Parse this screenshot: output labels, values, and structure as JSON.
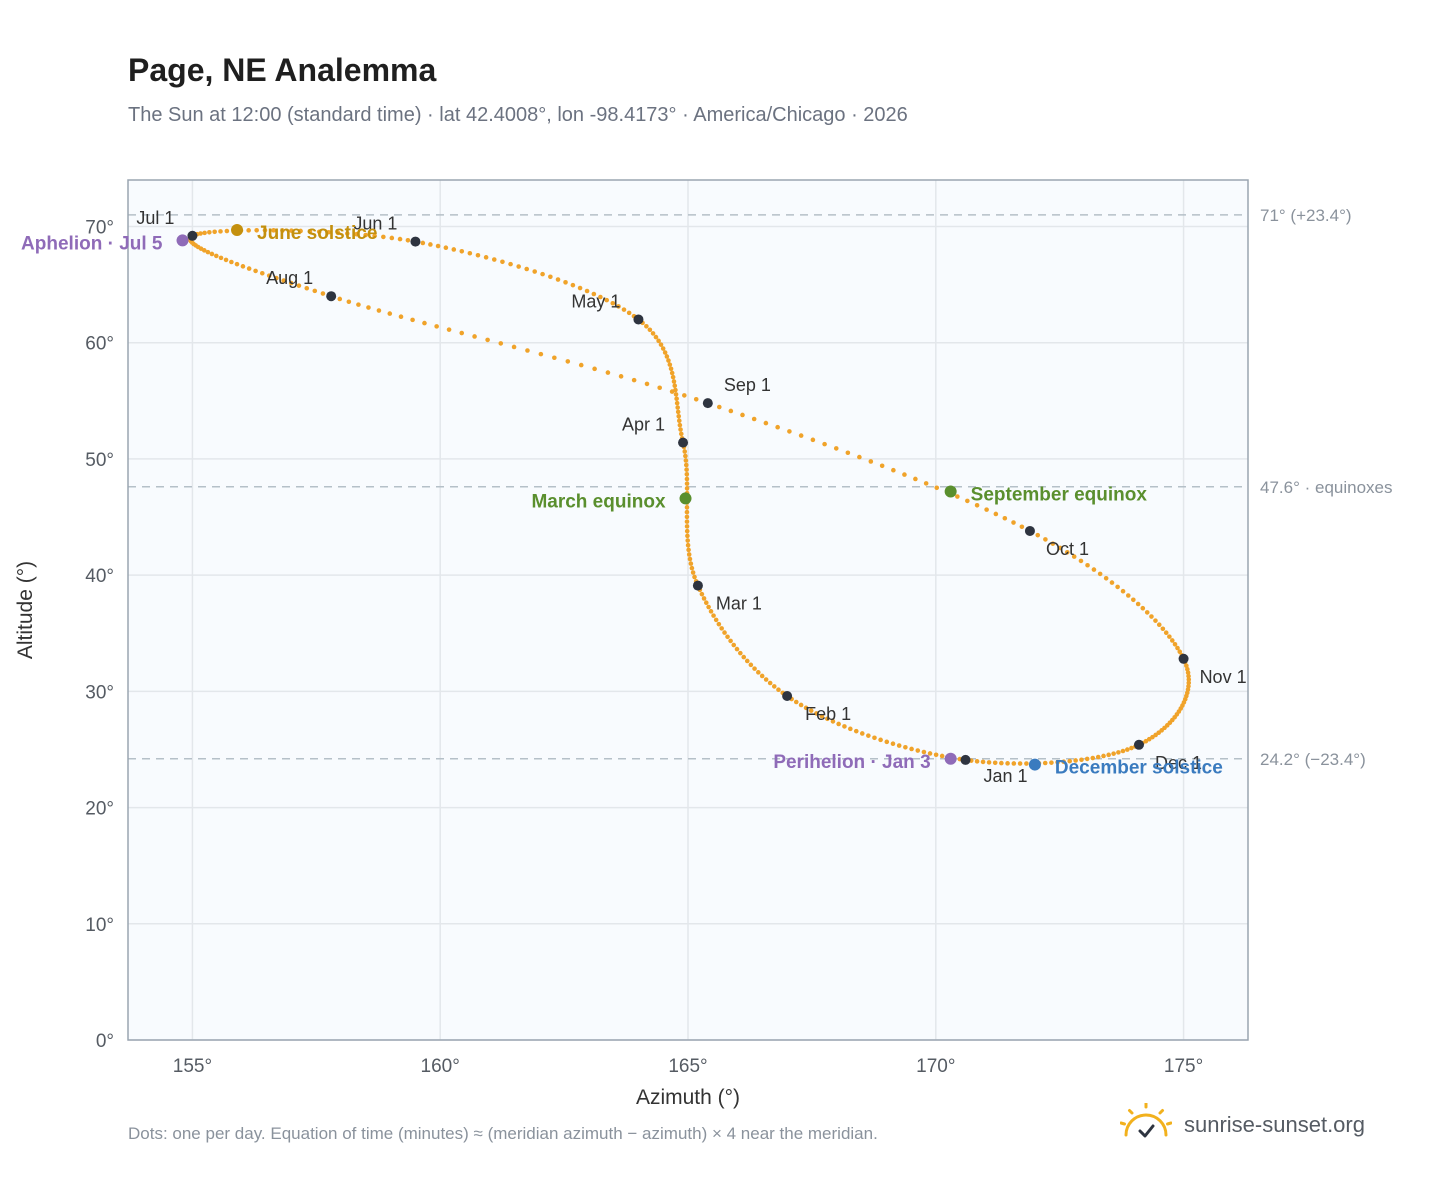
{
  "header": {
    "title": "Page, NE Analemma",
    "subtitle": "The Sun at 12:00 (standard time) · lat 42.4008°, lon -98.4173° · America/Chicago · 2026"
  },
  "footer": {
    "note": "Dots: one per day. Equation of time (minutes) ≈ (meridian azimuth − azimuth) × 4 near the meridian.",
    "brand": "sunrise-sunset.org"
  },
  "colors": {
    "curve": "#f0a32a",
    "month_dot": "#2e3440",
    "equinox": "#5a8f2e",
    "june_solstice": "#c4900e",
    "december_solstice": "#3a7bbf",
    "apsis": "#8f6bb8",
    "plot_bg": "#f8fbfe",
    "grid": "#e3e7eb",
    "ref_line": "#b5c0c8"
  },
  "icons": {
    "brand": "sun-check-icon"
  },
  "chart_data": {
    "type": "scatter",
    "title": "Page, NE Analemma",
    "xlabel": "Azimuth (°)",
    "ylabel": "Altitude (°)",
    "xlim": [
      153.7,
      176.3
    ],
    "ylim": [
      0,
      74
    ],
    "xticks": [
      155,
      160,
      165,
      170,
      175
    ],
    "xtick_labels": [
      "155°",
      "160°",
      "165°",
      "170°",
      "175°"
    ],
    "yticks": [
      0,
      10,
      20,
      30,
      40,
      50,
      60,
      70
    ],
    "ytick_labels": [
      "0°",
      "10°",
      "20°",
      "30°",
      "40°",
      "50°",
      "60°",
      "70°"
    ],
    "grid": true,
    "reference_lines": [
      {
        "alt": 71.0,
        "label": "71° (+23.4°)"
      },
      {
        "alt": 47.6,
        "label": "47.6° · equinoxes"
      },
      {
        "alt": 24.2,
        "label": "24.2° (−23.4°)"
      }
    ],
    "month_markers": [
      {
        "label": "Jan 1",
        "az": 170.6,
        "alt": 24.1
      },
      {
        "label": "Feb 1",
        "az": 167.0,
        "alt": 29.6
      },
      {
        "label": "Mar 1",
        "az": 165.2,
        "alt": 39.1
      },
      {
        "label": "Apr 1",
        "az": 164.9,
        "alt": 51.4
      },
      {
        "label": "May 1",
        "az": 164.0,
        "alt": 62.0
      },
      {
        "label": "Jun 1",
        "az": 159.5,
        "alt": 68.7
      },
      {
        "label": "Jul 1",
        "az": 155.0,
        "alt": 69.2
      },
      {
        "label": "Aug 1",
        "az": 157.8,
        "alt": 64.0
      },
      {
        "label": "Sep 1",
        "az": 165.4,
        "alt": 54.8
      },
      {
        "label": "Oct 1",
        "az": 171.9,
        "alt": 43.8
      },
      {
        "label": "Nov 1",
        "az": 175.0,
        "alt": 32.8
      },
      {
        "label": "Dec 1",
        "az": 174.1,
        "alt": 25.4
      }
    ],
    "events": [
      {
        "label": "March equinox",
        "az": 164.95,
        "alt": 46.6,
        "kind": "equinox"
      },
      {
        "label": "June solstice",
        "az": 155.9,
        "alt": 69.7,
        "kind": "june_solstice"
      },
      {
        "label": "September equinox",
        "az": 170.3,
        "alt": 47.2,
        "kind": "equinox"
      },
      {
        "label": "December solstice",
        "az": 172.0,
        "alt": 23.7,
        "kind": "december_solstice"
      },
      {
        "label": "Aphelion · Jul 5",
        "az": 154.8,
        "alt": 68.8,
        "kind": "apsis"
      },
      {
        "label": "Perihelion · Jan 3",
        "az": 170.3,
        "alt": 24.2,
        "kind": "apsis"
      }
    ]
  }
}
